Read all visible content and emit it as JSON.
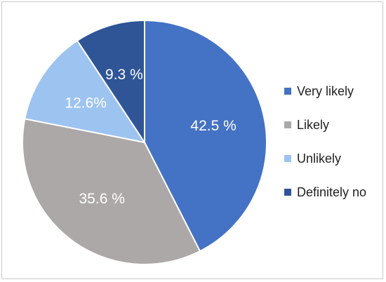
{
  "chart_data": {
    "type": "pie",
    "title": "",
    "legend_position": "right",
    "slices": [
      {
        "name": "Very likely",
        "value": 42.5,
        "label": "42.5 %",
        "color": "#4472C4"
      },
      {
        "name": "Likely",
        "value": 35.6,
        "label": "35.6 %",
        "color": "#ADA8A8"
      },
      {
        "name": "Unlikely",
        "value": 12.6,
        "label": "12.6%",
        "color": "#9DC3F0"
      },
      {
        "name": "Definitely no",
        "value": 9.3,
        "label": "9.3 %",
        "color": "#2F5597"
      }
    ]
  }
}
